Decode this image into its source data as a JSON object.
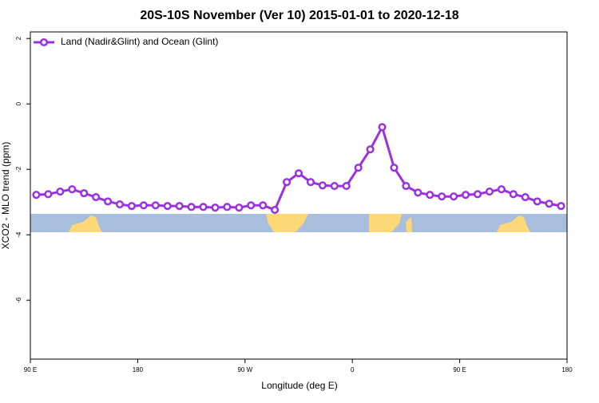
{
  "chart_data": {
    "type": "line",
    "title": "20S-10S November (Ver 10)   2015-01-01 to 2020-12-18",
    "x_label": "Longitude (deg E)",
    "y_label": "XCO2 - MLO trend (ppm)",
    "xlim": [
      90,
      540
    ],
    "xticks": [
      {
        "value": 90,
        "label": "90 E"
      },
      {
        "value": 180,
        "label": "180"
      },
      {
        "value": 270,
        "label": "90 W"
      },
      {
        "value": 360,
        "label": "0"
      },
      {
        "value": 450,
        "label": "90 E"
      },
      {
        "value": 540,
        "label": "180"
      }
    ],
    "ylim": [
      -7.8,
      2.2
    ],
    "yticks": [
      2,
      0,
      -2,
      -4,
      -6
    ],
    "legend": "top-left",
    "x": [
      95,
      105,
      115,
      125,
      135,
      145,
      155,
      165,
      175,
      185,
      195,
      205,
      215,
      225,
      235,
      245,
      255,
      265,
      275,
      285,
      295,
      305,
      315,
      325,
      335,
      345,
      355,
      365,
      375,
      385,
      395,
      405,
      415,
      425,
      435,
      445,
      455,
      465,
      475,
      485,
      495,
      505,
      515,
      525,
      535
    ],
    "series": [
      {
        "name": "Land (Nadir&Glint) and Ocean (Glint)",
        "color": "#9b30e0",
        "values": [
          -2.78,
          -2.76,
          -2.68,
          -2.61,
          -2.73,
          -2.85,
          -2.98,
          -3.07,
          -3.12,
          -3.1,
          -3.1,
          -3.12,
          -3.12,
          -3.15,
          -3.15,
          -3.17,
          -3.15,
          -3.17,
          -3.1,
          -3.1,
          -3.24,
          -2.39,
          -2.12,
          -2.39,
          -2.49,
          -2.51,
          -2.51,
          -1.95,
          -1.39,
          -0.71,
          -1.95,
          -2.51,
          -2.71,
          -2.78,
          -2.83,
          -2.83,
          -2.78,
          -2.76,
          -2.68,
          -2.61,
          -2.76,
          -2.85,
          -2.98,
          -3.05,
          -3.12
        ]
      }
    ]
  }
}
